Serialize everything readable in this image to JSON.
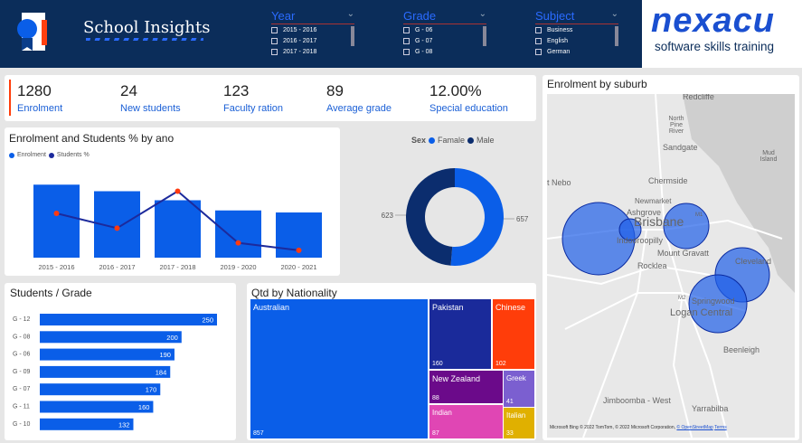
{
  "header": {
    "title": "School Insights",
    "brand_name": "nexacu",
    "brand_tagline": "software skills training"
  },
  "slicers": [
    {
      "label": "Year",
      "items": [
        "2015 - 2016",
        "2016 - 2017",
        "2017 - 2018"
      ]
    },
    {
      "label": "Grade",
      "items": [
        "G - 06",
        "G - 07",
        "G - 08"
      ]
    },
    {
      "label": "Subject",
      "items": [
        "Business",
        "English",
        "German"
      ]
    }
  ],
  "kpis": [
    {
      "value": "1280",
      "label": "Enrolment"
    },
    {
      "value": "24",
      "label": "New students"
    },
    {
      "value": "123",
      "label": "Faculty ration"
    },
    {
      "value": "89",
      "label": "Average grade"
    },
    {
      "value": "12.00%",
      "label": "Special education"
    }
  ],
  "chart_data": [
    {
      "type": "bar+line",
      "title": "Enrolment and Students % by ano",
      "categories": [
        "2015 - 2016",
        "2016 - 2017",
        "2017 - 2018",
        "2019 - 2020",
        "2020 - 2021"
      ],
      "series": [
        {
          "name": "Enrolment",
          "type": "bar",
          "values": [
            323,
            294,
            254,
            209,
            200
          ],
          "color": "#0a5ee8"
        },
        {
          "name": "Students %",
          "type": "line",
          "values": [
            0.5,
            0.4,
            0.65,
            0.3,
            0.25
          ],
          "color": "#1c2a9c",
          "marker_color": "#ff3a10"
        }
      ],
      "y2_ticks": [
        "0.8",
        "0.6",
        "0.4",
        "0.2"
      ],
      "y2lim": [
        0.2,
        0.8
      ],
      "legend": "top-left"
    },
    {
      "type": "donut",
      "legend_title": "Sex",
      "categories": [
        "Famale",
        "Male"
      ],
      "values": [
        657,
        623
      ],
      "colors": [
        "#0a5ee8",
        "#0b2d6e"
      ]
    },
    {
      "type": "bar",
      "orientation": "horizontal",
      "title": "Students / Grade",
      "categories": [
        "G - 12",
        "G - 08",
        "G - 06",
        "G - 09",
        "G - 07",
        "G - 11",
        "G - 10"
      ],
      "values": [
        250,
        200,
        190,
        184,
        170,
        160,
        132
      ],
      "color": "#0a5ee8"
    },
    {
      "type": "treemap",
      "title": "Qtd by Nationality",
      "categories": [
        "Australian",
        "Pakistan",
        "Chinese",
        "New Zealand",
        "Greek",
        "Indian",
        "Italian"
      ],
      "values": [
        857,
        160,
        102,
        88,
        41,
        87,
        33
      ],
      "colors": [
        "#0a5ee8",
        "#1a2a9a",
        "#ff3d0a",
        "#6b0a8a",
        "#7b5fd0",
        "#e046b4",
        "#e0b000"
      ]
    }
  ],
  "map": {
    "title": "Enrolment by suburb",
    "labels": [
      "Redcliffe",
      "North Pine River",
      "Sandgate",
      "Mud Island",
      "Chermside",
      "t Nebo",
      "Newmarket",
      "Ashgrove",
      "Brisbane",
      "Indooroopilly",
      "Mount Gravatt",
      "Rocklea",
      "Cleveland",
      "Springwood",
      "Logan Central",
      "Beenleigh",
      "Jimboomba - West",
      "Yarrabilba",
      "M1",
      "M2"
    ],
    "attribution": "Microsoft Bing  © 2022 TomTom, © 2022 Microsoft Corporation,",
    "osm_link": "© OpenStreetMap",
    "terms_link": "Terms"
  }
}
